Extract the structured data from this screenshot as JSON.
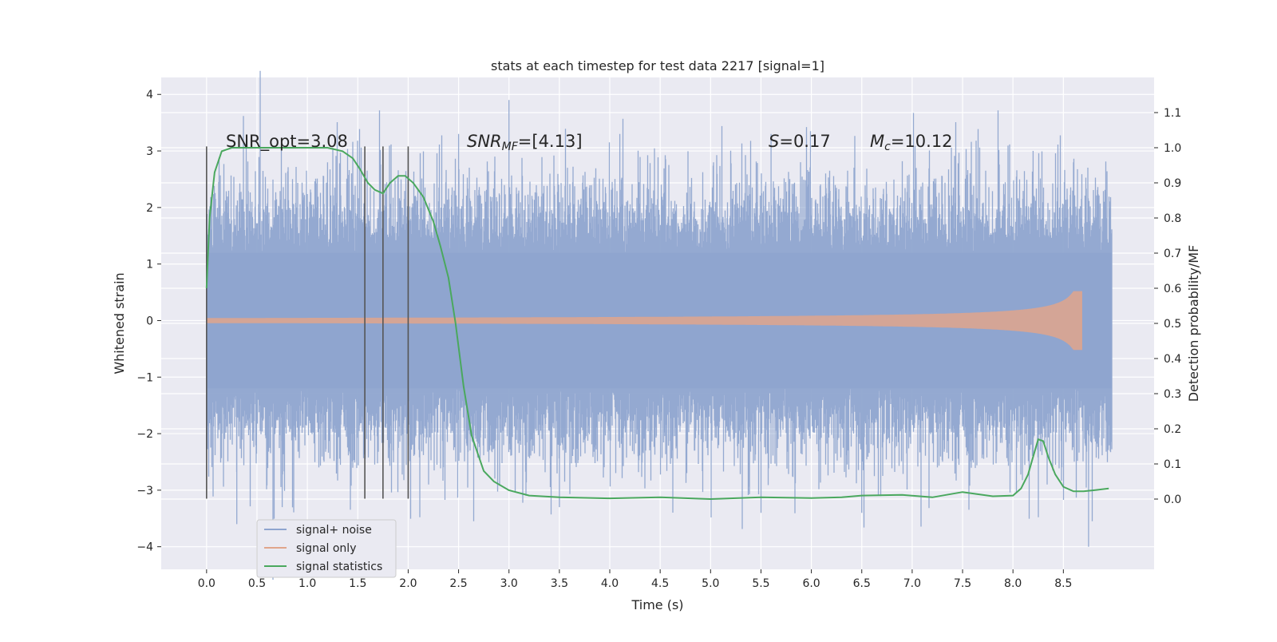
{
  "chart_data": {
    "type": "line",
    "title": "stats at each timestep for test data 2217 [signal=1]",
    "xlabel": "Time (s)",
    "ylabel": "Whitened strain",
    "ylabel_right": "Detection probability/MF",
    "xlim": [
      -0.45,
      9.4
    ],
    "ylim": [
      -4.4,
      4.3
    ],
    "ylim_right": [
      -0.2,
      1.2
    ],
    "x_ticks": [
      0.0,
      0.5,
      1.0,
      1.5,
      2.0,
      2.5,
      3.0,
      3.5,
      4.0,
      4.5,
      5.0,
      5.5,
      6.0,
      6.5,
      7.0,
      7.5,
      8.0,
      8.5
    ],
    "y_ticks": [
      -4,
      -3,
      -2,
      -1,
      0,
      1,
      2,
      3,
      4
    ],
    "y_ticks_right": [
      0.0,
      0.1,
      0.2,
      0.3,
      0.4,
      0.5,
      0.6,
      0.7,
      0.8,
      0.9,
      1.0,
      1.1
    ],
    "grid": true,
    "legend_position": "bottom-left",
    "annotations": {
      "snr_opt": "SNR_opt=3.08",
      "snr_mf_label": "SNR",
      "snr_mf_sub": "MF",
      "snr_mf_value": "=[4.13]",
      "s_label": "S",
      "s_value": "=0.17",
      "mc_label": "M",
      "mc_sub": "c",
      "mc_value": "=10.12"
    },
    "vertical_markers": [
      0.0,
      1.57,
      1.75,
      2.0
    ],
    "series": [
      {
        "name": "signal+ noise",
        "color": "#8fa5cf",
        "x_range": [
          0.0,
          8.98
        ],
        "envelope": "noise_band",
        "peaks": [
          [
            0.0,
            2.3
          ],
          [
            0.3,
            -3.6
          ],
          [
            0.45,
            2.1
          ],
          [
            0.75,
            -3.3
          ],
          [
            1.2,
            2.8
          ],
          [
            2.5,
            3.3
          ],
          [
            3.0,
            3.9
          ],
          [
            3.5,
            -3.3
          ],
          [
            4.1,
            3.3
          ],
          [
            5.6,
            3.3
          ],
          [
            5.5,
            -3.4
          ],
          [
            6.5,
            -3.4
          ],
          [
            8.2,
            3.0
          ],
          [
            8.75,
            -4.0
          ],
          [
            8.6,
            2.8
          ]
        ]
      },
      {
        "name": "signal only",
        "color": "#e0a58c",
        "x_range": [
          0.0,
          8.68
        ],
        "chirp_max_amplitude": 0.52
      },
      {
        "name": "signal statistics",
        "color": "#4aa85e",
        "axis": "right",
        "x": [
          0.0,
          0.03,
          0.08,
          0.15,
          0.25,
          0.4,
          0.6,
          0.9,
          1.2,
          1.35,
          1.45,
          1.52,
          1.6,
          1.67,
          1.75,
          1.82,
          1.9,
          1.97,
          2.05,
          2.15,
          2.25,
          2.32,
          2.4,
          2.47,
          2.55,
          2.63,
          2.75,
          2.85,
          3.0,
          3.2,
          3.5,
          4.0,
          4.5,
          5.0,
          5.5,
          6.0,
          6.3,
          6.5,
          6.9,
          7.2,
          7.5,
          7.8,
          8.0,
          8.08,
          8.15,
          8.2,
          8.25,
          8.3,
          8.35,
          8.42,
          8.5,
          8.6,
          8.7,
          8.8,
          8.95
        ],
        "y": [
          0.6,
          0.8,
          0.93,
          0.99,
          1.0,
          1.0,
          1.0,
          1.0,
          1.0,
          0.99,
          0.97,
          0.94,
          0.9,
          0.88,
          0.87,
          0.9,
          0.92,
          0.92,
          0.9,
          0.86,
          0.79,
          0.72,
          0.63,
          0.5,
          0.32,
          0.18,
          0.08,
          0.05,
          0.025,
          0.01,
          0.005,
          0.002,
          0.005,
          0.0,
          0.005,
          0.003,
          0.005,
          0.01,
          0.012,
          0.005,
          0.02,
          0.008,
          0.01,
          0.03,
          0.07,
          0.12,
          0.17,
          0.165,
          0.12,
          0.07,
          0.035,
          0.022,
          0.022,
          0.025,
          0.03
        ]
      }
    ]
  }
}
